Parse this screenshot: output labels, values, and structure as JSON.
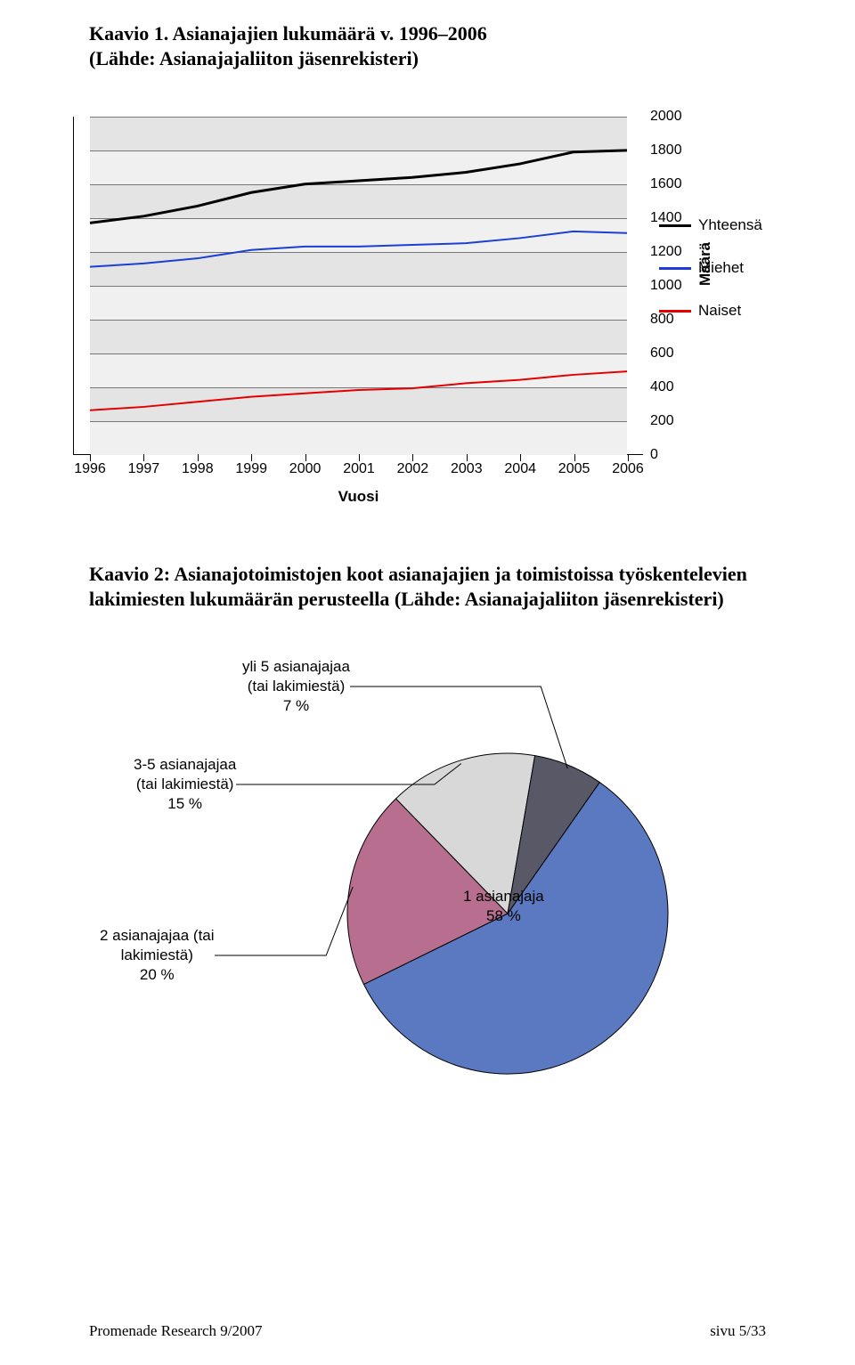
{
  "heading1": "Kaavio 1. Asianajajien lukumäärä v. 1996–2006\n(Lähde: Asianajajaliiton jäsenrekisteri)",
  "line_chart": {
    "type": "line",
    "x_axis_title": "Vuosi",
    "y_axis_title": "Määrä",
    "years": [
      "1996",
      "1997",
      "1998",
      "1999",
      "2000",
      "2001",
      "2002",
      "2003",
      "2004",
      "2005",
      "2006"
    ],
    "ylim": [
      0,
      2000
    ],
    "ytick_step": 200,
    "y_ticks": [
      0,
      200,
      400,
      600,
      800,
      1000,
      1200,
      1400,
      1600,
      1800,
      2000
    ],
    "plot_bg_light": "#f0f0f0",
    "plot_bg_dark": "#e4e4e4",
    "grid_color": "#777777",
    "series": [
      {
        "name": "Yhteensä",
        "color": "#000000",
        "width": 3,
        "values": [
          1370,
          1410,
          1470,
          1550,
          1600,
          1620,
          1640,
          1670,
          1720,
          1790,
          1800
        ]
      },
      {
        "name": "Miehet",
        "color": "#1b3fd6",
        "width": 2,
        "values": [
          1110,
          1130,
          1160,
          1210,
          1230,
          1230,
          1240,
          1250,
          1280,
          1320,
          1310
        ]
      },
      {
        "name": "Naiset",
        "color": "#e40000",
        "width": 2,
        "values": [
          260,
          280,
          310,
          340,
          360,
          380,
          390,
          420,
          440,
          470,
          490
        ]
      }
    ]
  },
  "heading2": "Kaavio 2: Asianajotoimistojen koot asianajajien ja toimistoissa työskentelevien lakimiesten lukumäärän perusteella (Lähde: Asianajajaliiton jäsenrekisteri)",
  "pie_chart": {
    "type": "pie",
    "background_color": "#ffffff",
    "slice_border": "#000000",
    "slices": [
      {
        "key": "one",
        "label": "1 asianajaja\n58 %",
        "value": 58,
        "color": "#5a79c0"
      },
      {
        "key": "two",
        "label": "2 asianajajaa (tai\nlakimiestä)\n20 %",
        "value": 20,
        "color": "#b86e8e"
      },
      {
        "key": "three5",
        "label": "3-5 asianajajaa\n(tai lakimiestä)\n15 %",
        "value": 15,
        "color": "#d8d8d8"
      },
      {
        "key": "over5",
        "label": "yli 5 asianajajaa\n(tai lakimiestä)\n7 %",
        "value": 7,
        "color": "#585866"
      }
    ],
    "start_angle_deg": 35
  },
  "footer_left": "Promenade Research 9/2007",
  "footer_right": "sivu 5/33"
}
